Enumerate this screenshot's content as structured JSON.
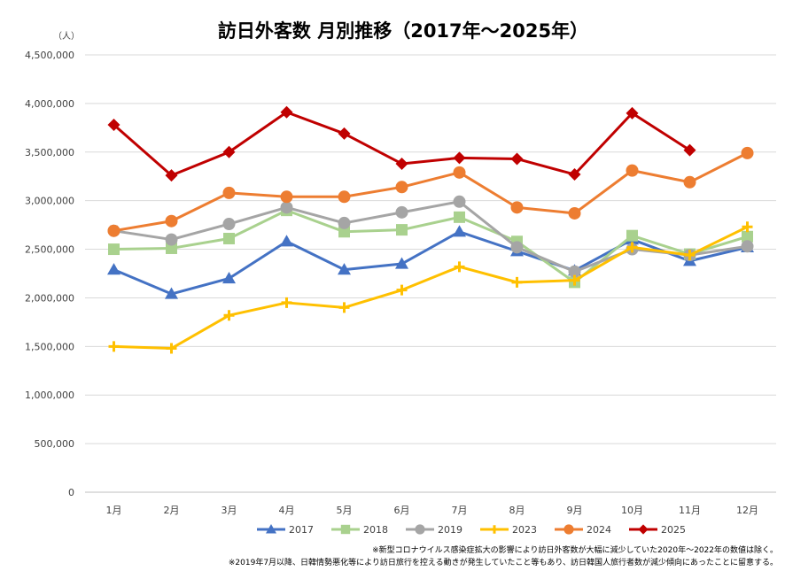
{
  "chart_data": {
    "type": "line",
    "title": "訪日外客数 月別推移（2017年～2025年）",
    "ylabel": "（人）",
    "xlabel": "",
    "categories": [
      "1月",
      "2月",
      "3月",
      "4月",
      "5月",
      "6月",
      "7月",
      "8月",
      "9月",
      "10月",
      "11月",
      "12月"
    ],
    "ylim": [
      0,
      4500000
    ],
    "yticks": [
      0,
      500000,
      1000000,
      1500000,
      2000000,
      2500000,
      3000000,
      3500000,
      4000000,
      4500000
    ],
    "ytick_labels": [
      "0",
      "500,000",
      "1,000,000",
      "1,500,000",
      "2,000,000",
      "2,500,000",
      "3,000,000",
      "3,500,000",
      "4,000,000",
      "4,500,000"
    ],
    "grid": true,
    "legend_position": "bottom",
    "series": [
      {
        "name": "2017",
        "color": "#4472C4",
        "marker": "triangle",
        "values": [
          2290000,
          2040000,
          2200000,
          2580000,
          2290000,
          2350000,
          2680000,
          2480000,
          2280000,
          2600000,
          2380000,
          2520000
        ]
      },
      {
        "name": "2018",
        "color": "#A9D18E",
        "marker": "square",
        "values": [
          2500000,
          2510000,
          2610000,
          2900000,
          2680000,
          2700000,
          2830000,
          2580000,
          2160000,
          2640000,
          2450000,
          2630000
        ]
      },
      {
        "name": "2019",
        "color": "#A5A5A5",
        "marker": "circle",
        "values": [
          2690000,
          2600000,
          2760000,
          2930000,
          2770000,
          2880000,
          2990000,
          2520000,
          2270000,
          2500000,
          2440000,
          2530000
        ]
      },
      {
        "name": "2023",
        "color": "#FFC000",
        "marker": "cross",
        "values": [
          1500000,
          1480000,
          1820000,
          1950000,
          1900000,
          2080000,
          2320000,
          2160000,
          2180000,
          2520000,
          2440000,
          2730000
        ]
      },
      {
        "name": "2024",
        "color": "#ED7D31",
        "marker": "circle",
        "values": [
          2690000,
          2790000,
          3080000,
          3040000,
          3040000,
          3140000,
          3290000,
          2930000,
          2870000,
          3310000,
          3190000,
          3490000
        ]
      },
      {
        "name": "2025",
        "color": "#C00000",
        "marker": "diamond",
        "values": [
          3780000,
          3260000,
          3500000,
          3910000,
          3690000,
          3380000,
          3440000,
          3430000,
          3270000,
          3900000,
          3520000,
          null
        ]
      }
    ],
    "notes": [
      "※新型コロナウイルス感染症拡大の影響により訪日外客数が大幅に減少していた2020年～2022年の数値は除く。",
      "※2019年7月以降、日韓情勢悪化等により訪日旅行を控える動きが発生していたこと等もあり、訪日韓国人旅行者数が減少傾向にあったことに留意する。"
    ]
  }
}
